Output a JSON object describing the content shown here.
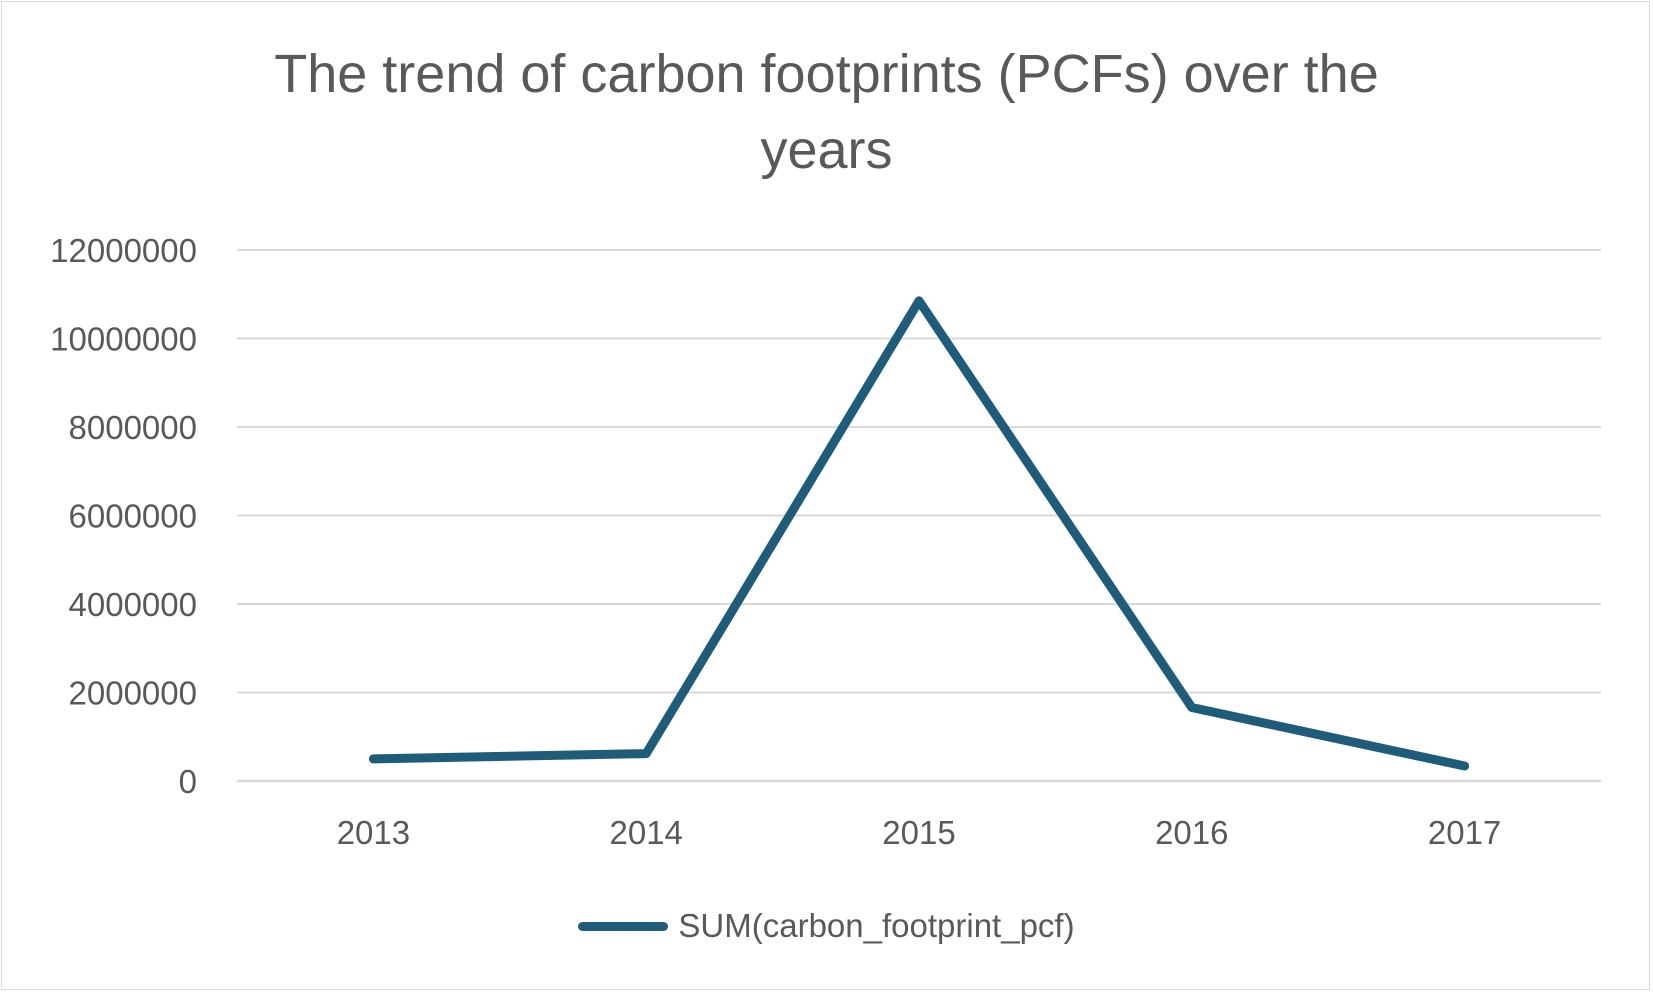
{
  "chart_data": {
    "type": "line",
    "title": "The trend of carbon footprints (PCFs) over the years",
    "title_lines": [
      "The trend of carbon footprints (PCFs) over the",
      "years"
    ],
    "categories": [
      "2013",
      "2014",
      "2015",
      "2016",
      "2017"
    ],
    "series": [
      {
        "name": "SUM(carbon_footprint_pcf)",
        "color": "#1f5c7a",
        "values": [
          500000,
          620000,
          10850000,
          1660000,
          340000
        ]
      }
    ],
    "y_ticks": [
      "12000000",
      "10000000",
      "8000000",
      "6000000",
      "4000000",
      "2000000",
      "0"
    ],
    "ylim": [
      0,
      12000000
    ],
    "grid": true,
    "legend_position": "bottom"
  }
}
